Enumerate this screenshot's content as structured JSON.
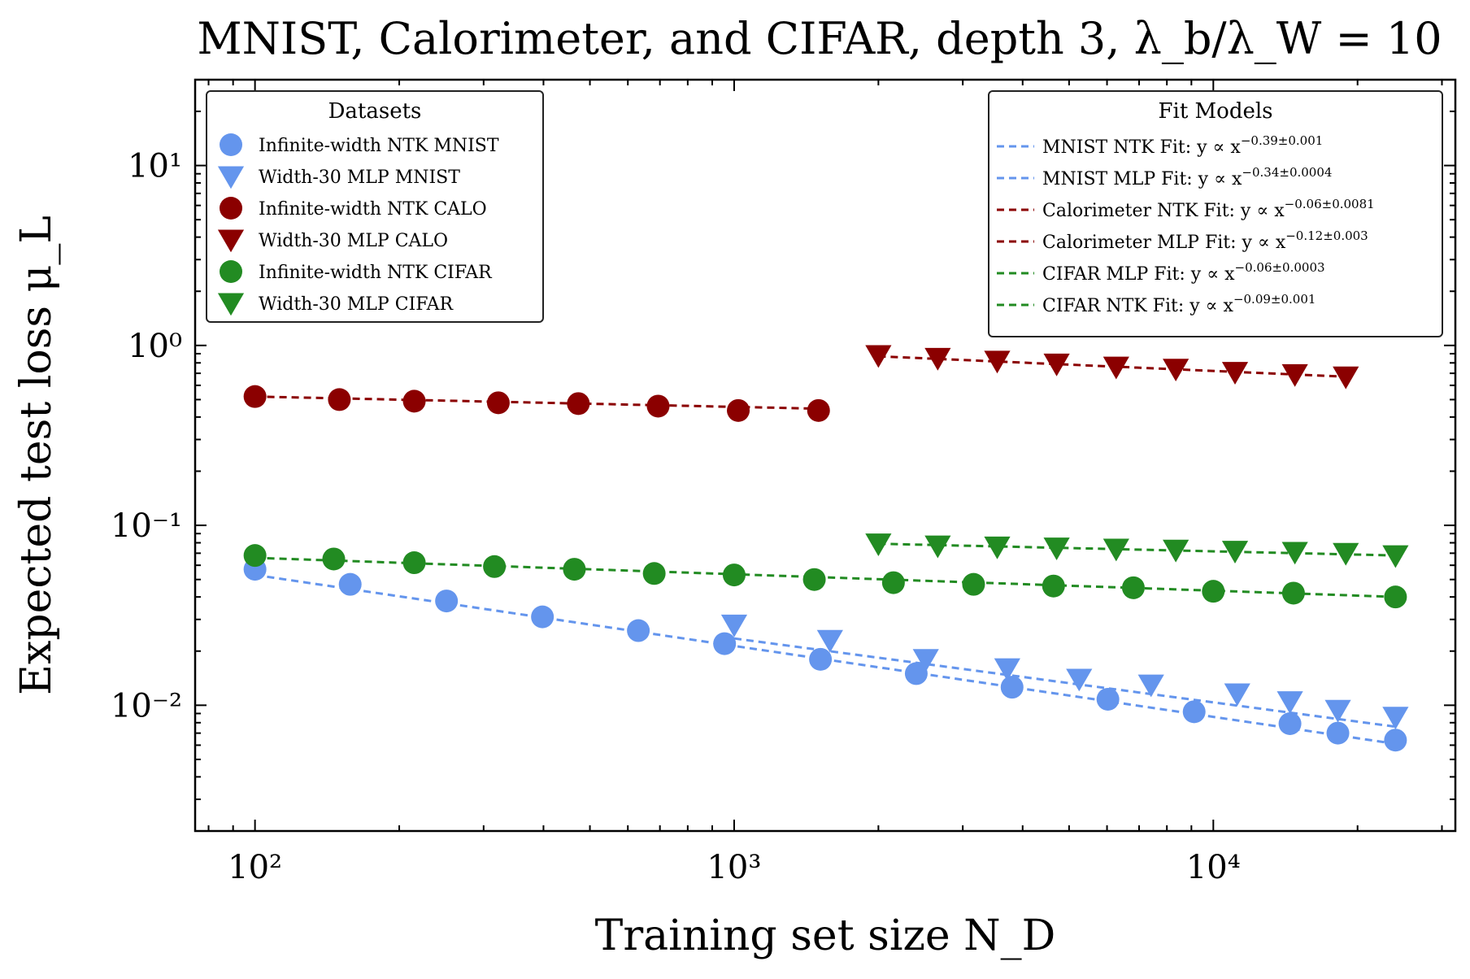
{
  "chart_data": {
    "type": "scatter",
    "title": "MNIST, Calorimeter, and CIFAR, depth 3, λ_b/λ_W = 10",
    "xlabel": "Training set size N_D",
    "ylabel": "Expected test loss μ_L",
    "xscale": "log",
    "yscale": "log",
    "xlim": [
      75,
      32000
    ],
    "ylim": [
      0.002,
      30
    ],
    "x_ticks": [
      {
        "value": 100,
        "label": "10²"
      },
      {
        "value": 1000,
        "label": "10³"
      },
      {
        "value": 10000,
        "label": "10⁴"
      }
    ],
    "y_ticks": [
      {
        "value": 0.01,
        "label": "10⁻²"
      },
      {
        "value": 0.1,
        "label": "10⁻¹"
      },
      {
        "value": 1,
        "label": "10⁰"
      },
      {
        "value": 10,
        "label": "10¹"
      }
    ],
    "legends": [
      {
        "title": "Datasets",
        "placement": "top-left",
        "entries": [
          {
            "label": "Infinite-width NTK MNIST",
            "marker": "circle",
            "color": "#6495ED"
          },
          {
            "label": "Width-30 MLP MNIST",
            "marker": "triangle-down",
            "color": "#6495ED"
          },
          {
            "label": "Infinite-width NTK CALO",
            "marker": "circle",
            "color": "#8B0000"
          },
          {
            "label": "Width-30 MLP CALO",
            "marker": "triangle-down",
            "color": "#8B0000"
          },
          {
            "label": "Infinite-width NTK CIFAR",
            "marker": "circle",
            "color": "#228B22"
          },
          {
            "label": "Width-30 MLP CIFAR",
            "marker": "triangle-down",
            "color": "#228B22"
          }
        ]
      },
      {
        "title": "Fit Models",
        "placement": "top-right",
        "entries": [
          {
            "label": "MNIST NTK Fit: y ∝ x",
            "exponent": "−0.39±0.001",
            "color": "#6495ED"
          },
          {
            "label": "MNIST MLP Fit: y ∝ x",
            "exponent": "−0.34±0.0004",
            "color": "#6495ED"
          },
          {
            "label": "Calorimeter NTK Fit: y ∝ x",
            "exponent": "−0.06±0.0081",
            "color": "#8B0000"
          },
          {
            "label": "Calorimeter MLP Fit: y ∝ x",
            "exponent": "−0.12±0.003",
            "color": "#8B0000"
          },
          {
            "label": "CIFAR MLP Fit: y ∝ x",
            "exponent": "−0.06±0.0003",
            "color": "#228B22"
          },
          {
            "label": "CIFAR NTK Fit: y ∝ x",
            "exponent": "−0.09±0.001",
            "color": "#228B22"
          }
        ]
      }
    ],
    "series": [
      {
        "name": "Infinite-width NTK MNIST",
        "marker": "circle",
        "color": "#6495ED",
        "x": [
          100,
          158,
          251,
          398,
          631,
          955,
          1514,
          2399,
          3802,
          6026,
          9120,
          14454,
          18197,
          24000
        ],
        "y": [
          0.057,
          0.047,
          0.038,
          0.031,
          0.026,
          0.022,
          0.018,
          0.015,
          0.0126,
          0.0108,
          0.0092,
          0.0079,
          0.007,
          0.0064
        ]
      },
      {
        "name": "Width-30 MLP MNIST",
        "marker": "triangle-down",
        "color": "#6495ED",
        "x": [
          1000,
          1585,
          2512,
          3715,
          5248,
          7413,
          11220,
          14454,
          18197,
          24000
        ],
        "y": [
          0.028,
          0.023,
          0.018,
          0.016,
          0.014,
          0.013,
          0.0116,
          0.0105,
          0.0094,
          0.0086
        ]
      },
      {
        "name": "Infinite-width NTK CALO",
        "marker": "circle",
        "color": "#8B0000",
        "x": [
          100,
          150,
          215,
          322,
          473,
          694,
          1020,
          1500
        ],
        "y": [
          0.52,
          0.5,
          0.49,
          0.48,
          0.475,
          0.46,
          0.435,
          0.435
        ]
      },
      {
        "name": "Width-30 MLP CALO",
        "marker": "triangle-down",
        "color": "#8B0000",
        "x": [
          2000,
          2660,
          3540,
          4710,
          6270,
          8350,
          11100,
          14800,
          18900
        ],
        "y": [
          0.88,
          0.85,
          0.82,
          0.79,
          0.76,
          0.74,
          0.71,
          0.69,
          0.67
        ]
      },
      {
        "name": "Infinite-width NTK CIFAR",
        "marker": "circle",
        "color": "#228B22",
        "x": [
          100,
          146,
          215,
          316,
          464,
          681,
          1000,
          1470,
          2150,
          3160,
          4640,
          6810,
          10000,
          14700,
          24000
        ],
        "y": [
          0.068,
          0.065,
          0.062,
          0.059,
          0.057,
          0.054,
          0.053,
          0.05,
          0.048,
          0.047,
          0.046,
          0.045,
          0.043,
          0.042,
          0.04
        ]
      },
      {
        "name": "Width-30 MLP CIFAR",
        "marker": "triangle-down",
        "color": "#228B22",
        "x": [
          2000,
          2660,
          3540,
          4710,
          6270,
          8350,
          11100,
          14800,
          18900,
          24000
        ],
        "y": [
          0.079,
          0.077,
          0.076,
          0.075,
          0.074,
          0.073,
          0.072,
          0.071,
          0.07,
          0.068
        ]
      }
    ],
    "fits": [
      {
        "name": "MNIST NTK Fit",
        "color": "#6495ED",
        "x": [
          100,
          24000
        ],
        "y": [
          0.053,
          0.0061
        ]
      },
      {
        "name": "MNIST MLP Fit",
        "color": "#6495ED",
        "x": [
          1000,
          24000
        ],
        "y": [
          0.0235,
          0.0076
        ]
      },
      {
        "name": "Calorimeter NTK Fit",
        "color": "#8B0000",
        "x": [
          100,
          1500
        ],
        "y": [
          0.52,
          0.445
        ]
      },
      {
        "name": "Calorimeter MLP Fit",
        "color": "#8B0000",
        "x": [
          2000,
          18900
        ],
        "y": [
          0.87,
          0.67
        ]
      },
      {
        "name": "CIFAR MLP Fit",
        "color": "#228B22",
        "x": [
          2000,
          24000
        ],
        "y": [
          0.079,
          0.068
        ]
      },
      {
        "name": "CIFAR NTK Fit",
        "color": "#228B22",
        "x": [
          100,
          24000
        ],
        "y": [
          0.066,
          0.04
        ]
      }
    ]
  }
}
